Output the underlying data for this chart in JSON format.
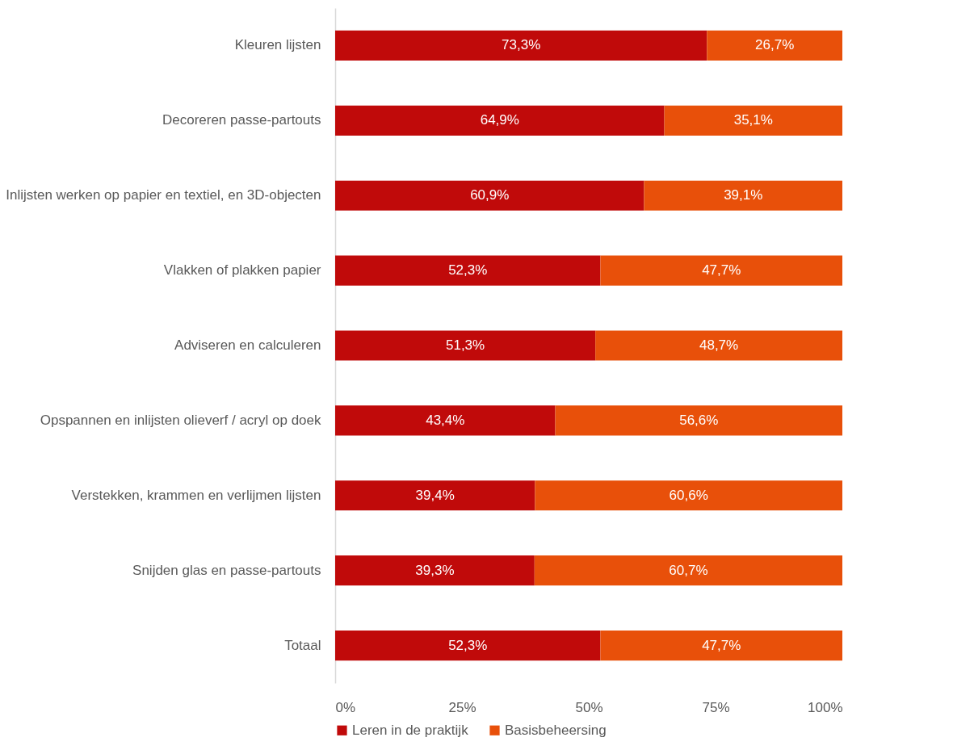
{
  "chart_data": {
    "type": "bar",
    "orientation": "horizontal",
    "stacked": true,
    "legend": "bottom",
    "grid": false,
    "categories": [
      "Kleuren lijsten",
      "Decoreren passe-partouts",
      "Inlijsten werken op papier en textiel, en 3D-objecten",
      "Vlakken of plakken papier",
      "Adviseren en calculeren",
      "Opspannen en inlijsten olieverf / acryl op doek",
      "Verstekken, krammen en verlijmen lijsten",
      "Snijden glas en passe-partouts",
      "Totaal"
    ],
    "xlim": [
      0,
      100
    ],
    "xticks": [
      {
        "value": 0,
        "label": "0%"
      },
      {
        "value": 25,
        "label": "25%"
      },
      {
        "value": 50,
        "label": "50%"
      },
      {
        "value": 75,
        "label": "75%"
      },
      {
        "value": 100,
        "label": "100%"
      }
    ],
    "series": [
      {
        "name": "Leren in de praktijk",
        "color": "#c00a0a",
        "values": [
          73.3,
          64.9,
          60.9,
          52.3,
          51.3,
          43.4,
          39.4,
          39.3,
          52.3
        ],
        "value_labels": [
          "73,3%",
          "64,9%",
          "60,9%",
          "52,3%",
          "51,3%",
          "43,4%",
          "39,4%",
          "39,3%",
          "52,3%"
        ]
      },
      {
        "name": "Basisbeheersing",
        "color": "#e8500a",
        "values": [
          26.7,
          35.1,
          39.1,
          47.7,
          48.7,
          56.6,
          60.6,
          60.7,
          47.7
        ],
        "value_labels": [
          "26,7%",
          "35,1%",
          "39,1%",
          "47,7%",
          "48,7%",
          "56,6%",
          "60,6%",
          "60,7%",
          "47,7%"
        ]
      }
    ]
  }
}
